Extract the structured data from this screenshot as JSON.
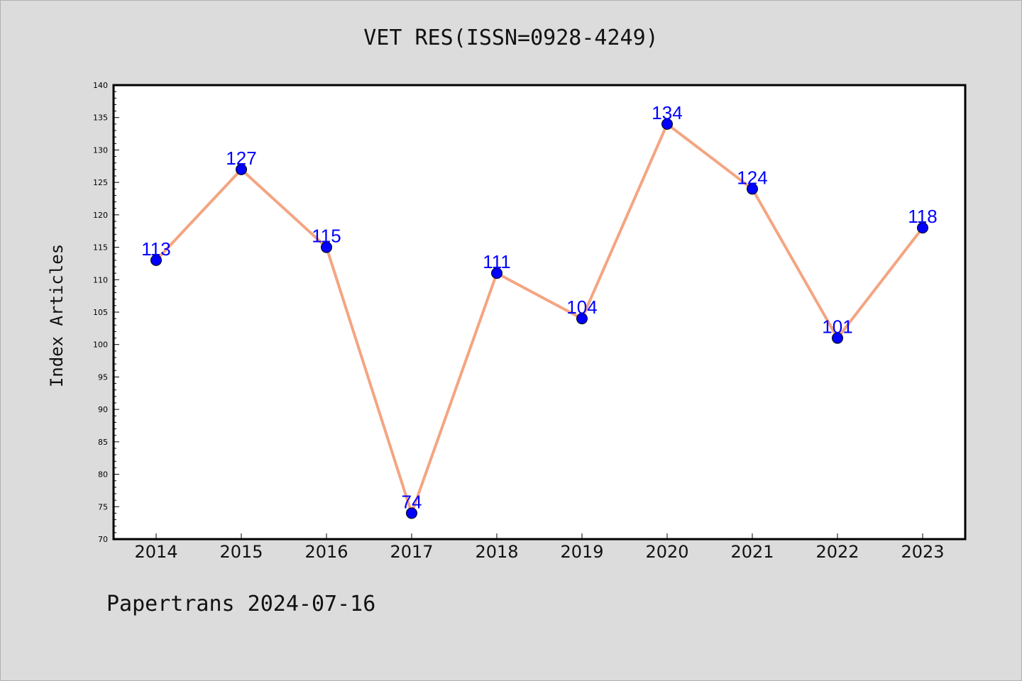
{
  "chart_data": {
    "type": "line",
    "title": "VET RES(ISSN=0928-4249)",
    "xlabel": "",
    "ylabel": "Index Articles",
    "categories": [
      "2014",
      "2015",
      "2016",
      "2017",
      "2018",
      "2019",
      "2020",
      "2021",
      "2022",
      "2023"
    ],
    "series": [
      {
        "values": [
          113,
          127,
          115,
          74,
          111,
          104,
          134,
          124,
          101,
          118
        ]
      }
    ],
    "ylim": [
      70,
      140
    ],
    "yticks": [
      70,
      75,
      80,
      85,
      90,
      95,
      100,
      105,
      110,
      115,
      120,
      125,
      130,
      135,
      140
    ],
    "grid": false,
    "legend": "none",
    "colors": {
      "line": "#f4a582",
      "marker": "#0000ff",
      "data_label": "#0000ff",
      "plot_background": "#ffffff",
      "page_background": "#dcdcdc"
    }
  },
  "footer": "Papertrans 2024-07-16"
}
